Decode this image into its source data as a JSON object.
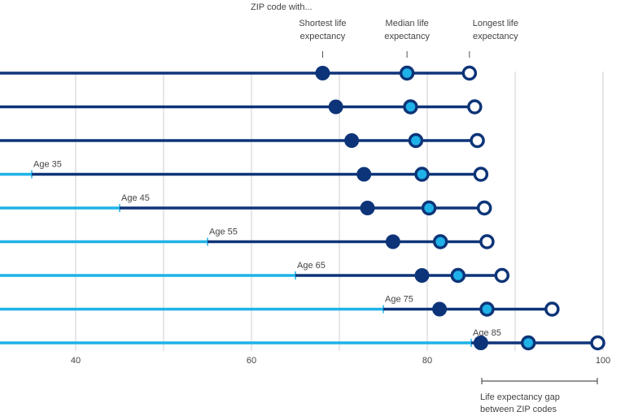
{
  "chart_data": {
    "type": "dot-range",
    "title": "ZIP code with...",
    "legend": {
      "shortest": "Shortest life expectancy",
      "median": "Median life expectancy",
      "longest": "Longest life expectancy",
      "gap": "Life expectancy gap between ZIP codes"
    },
    "xlim": [
      30,
      102
    ],
    "xticks": [
      40,
      60,
      80,
      100
    ],
    "gridlines": [
      40,
      50,
      60,
      70,
      80,
      90,
      100
    ],
    "rows": [
      {
        "age_label": "",
        "age": null,
        "shortest": 68.1,
        "median": 77.7,
        "longest": 84.8
      },
      {
        "age_label": "",
        "age": null,
        "shortest": 69.6,
        "median": 78.1,
        "longest": 85.4
      },
      {
        "age_label": "",
        "age": null,
        "shortest": 71.4,
        "median": 78.7,
        "longest": 85.7
      },
      {
        "age_label": "Age 35",
        "age": 35,
        "shortest": 72.8,
        "median": 79.4,
        "longest": 86.1
      },
      {
        "age_label": "Age 45",
        "age": 45,
        "shortest": 73.2,
        "median": 80.2,
        "longest": 86.5
      },
      {
        "age_label": "Age 55",
        "age": 55,
        "shortest": 76.1,
        "median": 81.5,
        "longest": 86.8
      },
      {
        "age_label": "Age 65",
        "age": 65,
        "shortest": 79.4,
        "median": 83.5,
        "longest": 88.5
      },
      {
        "age_label": "Age 75",
        "age": 75,
        "shortest": 81.4,
        "median": 86.8,
        "longest": 94.2
      },
      {
        "age_label": "Age 85",
        "age": 85,
        "shortest": 86.1,
        "median": 91.5,
        "longest": 99.4
      }
    ],
    "colors": {
      "dark": "#0d3478",
      "light": "#1fb2e8",
      "grid": "#cfcfcf"
    }
  }
}
